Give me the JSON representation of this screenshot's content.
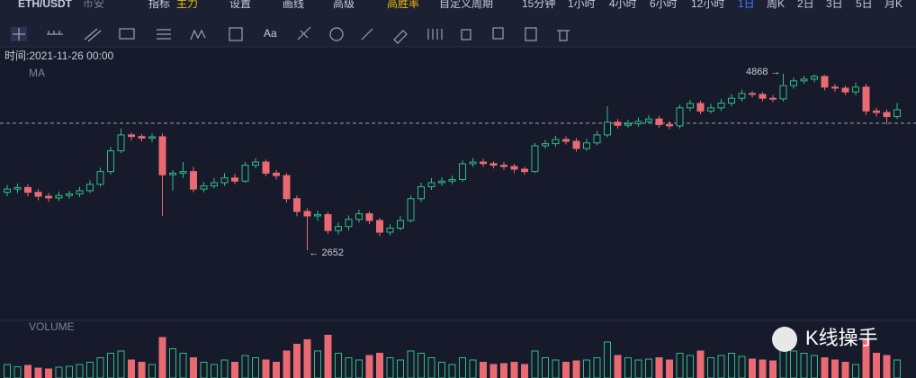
{
  "toolbar": {
    "symbol": "ETH/USDT",
    "exchange": "币安",
    "items": [
      "指标",
      "主力",
      "设置",
      "画线",
      "高级",
      "高胜率",
      "自定义周期"
    ],
    "periods": [
      "15分钟",
      "1小时",
      "4小时",
      "6小时",
      "12小时",
      "1日",
      "周K",
      "2日",
      "3日",
      "5日",
      "月K"
    ],
    "active_period": 5,
    "text_tool": "Aa"
  },
  "info": {
    "time": "时间:2021-11-26 00:00",
    "ma": "MA"
  },
  "watermark": "K线操手",
  "chart_data": {
    "type": "candlestick",
    "colors": {
      "up": "#2ebd85",
      "down": "#e96a72"
    },
    "ylim": [
      1840,
      4980
    ],
    "open": [
      3380,
      3420,
      3440,
      3380,
      3330,
      3310,
      3340,
      3360,
      3400,
      3480,
      3640,
      3900,
      4100,
      4080,
      4060,
      4077,
      3600,
      3620,
      3640,
      3420,
      3460,
      3500,
      3560,
      3520,
      3720,
      3760,
      3620,
      3590,
      3300,
      3140,
      3083,
      3100,
      2900,
      2950,
      3040,
      3110,
      3026,
      2879,
      2930,
      3026,
      3300,
      3450,
      3500,
      3520,
      3540,
      3738,
      3760,
      3740,
      3720,
      3704,
      3670,
      3640,
      3964,
      3990,
      4043,
      4020,
      3930,
      4000,
      4100,
      4260,
      4220,
      4240,
      4269,
      4300,
      4230,
      4213,
      4440,
      4495,
      4400,
      4439,
      4500,
      4560,
      4620,
      4608,
      4560,
      4552,
      4720,
      4778,
      4800,
      4834,
      4700,
      4687,
      4640,
      4700,
      4400,
      4382,
      4330
    ],
    "high": [
      3470,
      3490,
      3480,
      3420,
      3370,
      3390,
      3400,
      3450,
      3530,
      3690,
      3950,
      4180,
      4130,
      4110,
      4120,
      4120,
      3660,
      3760,
      3700,
      3510,
      3560,
      3620,
      3610,
      3760,
      3810,
      3790,
      3660,
      3620,
      3340,
      3180,
      3150,
      3130,
      3000,
      3090,
      3160,
      3140,
      3060,
      2980,
      3080,
      3340,
      3500,
      3560,
      3570,
      3590,
      3780,
      3810,
      3800,
      3770,
      3760,
      3740,
      3700,
      4000,
      4040,
      4090,
      4080,
      4060,
      4050,
      4150,
      4460,
      4300,
      4290,
      4320,
      4350,
      4340,
      4270,
      4480,
      4540,
      4530,
      4490,
      4550,
      4610,
      4670,
      4650,
      4640,
      4600,
      4868,
      4820,
      4840,
      4860,
      4850,
      4740,
      4720,
      4760,
      4740,
      4440,
      4420,
      4500
    ],
    "low": [
      3330,
      3370,
      3330,
      3280,
      3260,
      3270,
      3300,
      3320,
      3370,
      3450,
      3600,
      3870,
      4030,
      4020,
      4010,
      3080,
      3400,
      3560,
      3380,
      3380,
      3430,
      3460,
      3480,
      3500,
      3680,
      3580,
      3540,
      3250,
      3080,
      2652,
      3020,
      2860,
      2850,
      2900,
      3000,
      2980,
      2830,
      2840,
      2900,
      3000,
      3260,
      3410,
      3460,
      3480,
      3510,
      3700,
      3700,
      3680,
      3660,
      3620,
      3600,
      3620,
      3930,
      3950,
      3980,
      3890,
      3900,
      3970,
      4070,
      4180,
      4190,
      4200,
      4240,
      4190,
      4170,
      4180,
      4400,
      4360,
      4370,
      4400,
      4460,
      4520,
      4570,
      4520,
      4510,
      4520,
      4680,
      4740,
      4760,
      4660,
      4640,
      4600,
      4600,
      4350,
      4330,
      4230,
      4300
    ],
    "close": [
      3420,
      3440,
      3380,
      3330,
      3310,
      3340,
      3360,
      3400,
      3480,
      3640,
      3900,
      4100,
      4080,
      4060,
      4077,
      3600,
      3620,
      3640,
      3420,
      3460,
      3500,
      3560,
      3520,
      3720,
      3760,
      3620,
      3590,
      3300,
      3140,
      3083,
      3100,
      2900,
      2950,
      3040,
      3110,
      3026,
      2879,
      2930,
      3026,
      3300,
      3450,
      3500,
      3520,
      3540,
      3738,
      3760,
      3740,
      3720,
      3704,
      3670,
      3640,
      3964,
      3990,
      4043,
      4020,
      3930,
      4000,
      4100,
      4260,
      4220,
      4240,
      4269,
      4300,
      4230,
      4213,
      4440,
      4495,
      4400,
      4439,
      4500,
      4560,
      4620,
      4608,
      4560,
      4552,
      4720,
      4778,
      4800,
      4834,
      4700,
      4687,
      4640,
      4700,
      4400,
      4382,
      4330,
      4416
    ],
    "price_line": 4247,
    "low_label": {
      "value": 2652,
      "label": "← 2652"
    },
    "high_label": {
      "value": 4868,
      "label": "4868 →"
    },
    "volume": {
      "name": "VOLUME",
      "ylim": [
        0,
        100
      ],
      "values": [
        30,
        25,
        28,
        22,
        20,
        24,
        26,
        30,
        35,
        45,
        55,
        60,
        40,
        35,
        30,
        90,
        65,
        55,
        45,
        35,
        30,
        40,
        35,
        50,
        45,
        40,
        35,
        60,
        75,
        85,
        60,
        95,
        55,
        45,
        40,
        50,
        55,
        45,
        40,
        60,
        55,
        45,
        35,
        30,
        45,
        40,
        35,
        30,
        32,
        35,
        30,
        60,
        45,
        40,
        35,
        38,
        40,
        45,
        80,
        50,
        45,
        40,
        42,
        45,
        40,
        55,
        50,
        60,
        45,
        50,
        55,
        48,
        42,
        40,
        38,
        75,
        60,
        55,
        50,
        45,
        40,
        35,
        30,
        85,
        55,
        50,
        40
      ]
    }
  }
}
